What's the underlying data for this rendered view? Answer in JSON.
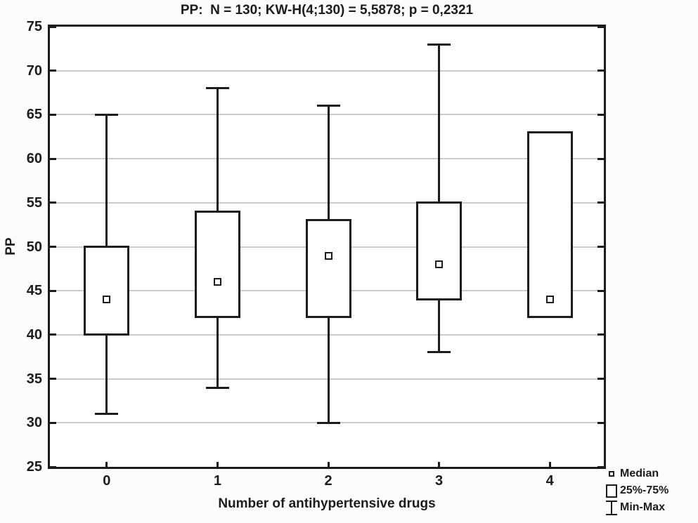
{
  "chart_data": {
    "type": "box",
    "title": "PP:  N = 130; KW-H(4;130) = 5,5878; p = 0,2321",
    "xlabel": "Number of antihypertensive drugs",
    "ylabel": "PP",
    "ylim": [
      25,
      75
    ],
    "ytick_step": 5,
    "yticks": [
      25,
      30,
      35,
      40,
      45,
      50,
      55,
      60,
      65,
      70,
      75
    ],
    "categories": [
      "0",
      "1",
      "2",
      "3",
      "4"
    ],
    "grid": "horizontal",
    "legend_position": "bottom-right",
    "boxes": [
      {
        "category": "0",
        "min": 31,
        "q1": 40,
        "median": 44,
        "q3": 50,
        "max": 65
      },
      {
        "category": "1",
        "min": 34,
        "q1": 42,
        "median": 46,
        "q3": 54,
        "max": 68
      },
      {
        "category": "2",
        "min": 30,
        "q1": 42,
        "median": 49,
        "q3": 53,
        "max": 66
      },
      {
        "category": "3",
        "min": 38,
        "q1": 44,
        "median": 48,
        "q3": 55,
        "max": 73
      },
      {
        "category": "4",
        "min": 42,
        "q1": 42,
        "median": 44,
        "q3": 63,
        "max": 63
      }
    ],
    "legend": {
      "items": [
        {
          "marker": "median-square",
          "label": "Median"
        },
        {
          "marker": "box",
          "label": "25%-75%"
        },
        {
          "marker": "min-max-whisker",
          "label": "Min-Max"
        }
      ]
    },
    "colors": {
      "line": "#1c1c1c",
      "gridline": "#cbcbcb",
      "background": "#ffffff",
      "text": "#1c1c1c"
    }
  }
}
